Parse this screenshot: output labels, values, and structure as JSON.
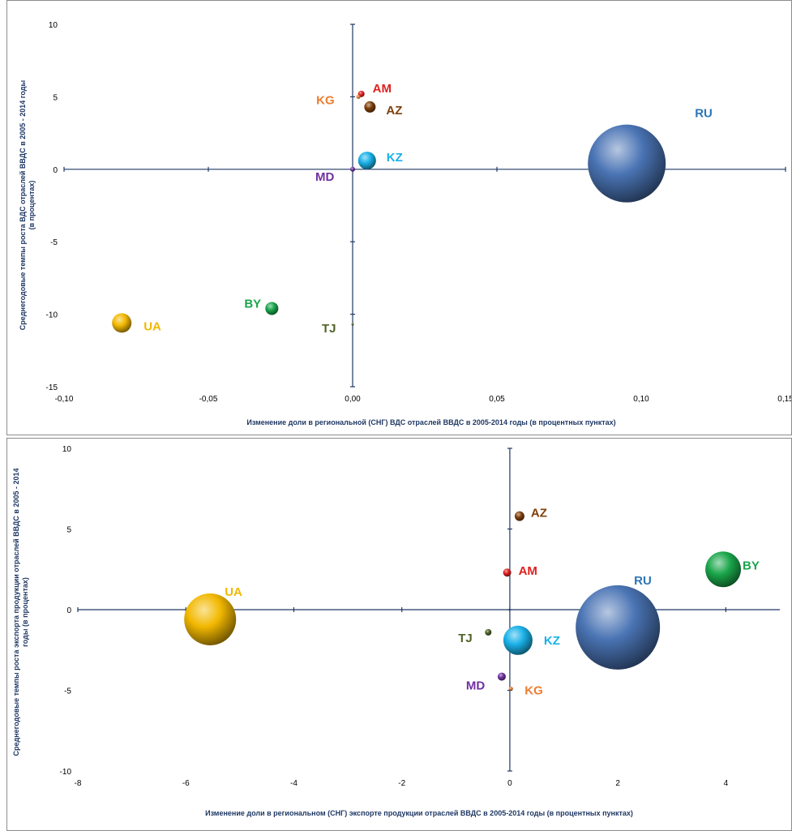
{
  "charts": [
    {
      "type": "scatter",
      "subtype": "bubble",
      "xlabel": "Изменение доли в региональной (СНГ) ВДС  отраслей ВВДС в 2005-2014 годы (в  процентных пунктах)",
      "ylabel_lines": [
        "Среднегодовые темпы роста ВДС  отраслей ВВДС в 2005 - 2014 годы",
        "(в процентах)"
      ],
      "xlim": [
        -0.1,
        0.15
      ],
      "ylim": [
        -15,
        10
      ],
      "xticks": [
        -0.1,
        -0.05,
        0.0,
        0.05,
        0.1,
        0.15
      ],
      "xtick_labels": [
        "-0,10",
        "-0,05",
        "0,00",
        "0,05",
        "0,10",
        "0,15"
      ],
      "yticks": [
        -15,
        -10,
        -5,
        0,
        5,
        10
      ],
      "ytick_labels": [
        "-15",
        "-10",
        "-5",
        "0",
        "5",
        "10"
      ],
      "grid": false,
      "points": [
        {
          "label": "RU",
          "x": 0.095,
          "y": 0.4,
          "size": 48,
          "color": "#4a74b4",
          "label_color": "#2e75b6"
        },
        {
          "label": "UA",
          "x": -0.08,
          "y": -10.6,
          "size": 12,
          "color": "#f2b800",
          "label_color": "#f2b800"
        },
        {
          "label": "BY",
          "x": -0.028,
          "y": -9.6,
          "size": 8,
          "color": "#1aa64a",
          "label_color": "#1aa64a"
        },
        {
          "label": "KZ",
          "x": 0.005,
          "y": 0.6,
          "size": 11,
          "color": "#1ab1e8",
          "label_color": "#1ab1e8"
        },
        {
          "label": "AM",
          "x": 0.003,
          "y": 5.2,
          "size": 4,
          "color": "#e02020",
          "label_color": "#e02020"
        },
        {
          "label": "KG",
          "x": 0.002,
          "y": 5.0,
          "size": 2.5,
          "color": "#ed7d31",
          "label_color": "#ed7d31"
        },
        {
          "label": "AZ",
          "x": 0.006,
          "y": 4.3,
          "size": 7,
          "color": "#7f3f0a",
          "label_color": "#7f3f0a"
        },
        {
          "label": "MD",
          "x": 0.0,
          "y": 0.0,
          "size": 3,
          "color": "#7030a0",
          "label_color": "#7030a0"
        },
        {
          "label": "TJ",
          "x": 0.0,
          "y": -10.7,
          "size": 1.5,
          "color": "#4f6228",
          "label_color": "#4f6228"
        }
      ]
    },
    {
      "type": "scatter",
      "subtype": "bubble",
      "xlabel": "Изменение доли в региональном (СНГ) экспорте продукции отраслей ВВДС в 2005-2014 годы (в  процентных пунктах)",
      "ylabel_lines": [
        "Среднегодовые темпы роста экспорта продукции  отраслей ВВДС в 2005 - 2014",
        "годы (в процентах)"
      ],
      "xlim": [
        -8,
        5
      ],
      "ylim": [
        -10,
        10
      ],
      "xticks": [
        -8,
        -6,
        -4,
        -2,
        0,
        2,
        4
      ],
      "xtick_labels": [
        "-8",
        "-6",
        "-4",
        "-2",
        "0",
        "2",
        "4"
      ],
      "yticks": [
        -10,
        -5,
        0,
        5,
        10
      ],
      "ytick_labels": [
        "-10",
        "-5",
        "0",
        "5",
        "10"
      ],
      "grid": false,
      "points": [
        {
          "label": "RU",
          "x": 2.0,
          "y": -1.1,
          "size": 52,
          "color": "#4a74b4",
          "label_color": "#2e75b6"
        },
        {
          "label": "UA",
          "x": -5.55,
          "y": -0.6,
          "size": 32,
          "color": "#f2b800",
          "label_color": "#f2b800"
        },
        {
          "label": "BY",
          "x": 3.95,
          "y": 2.5,
          "size": 22,
          "color": "#1aa64a",
          "label_color": "#1aa64a"
        },
        {
          "label": "KZ",
          "x": 0.15,
          "y": -1.9,
          "size": 18,
          "color": "#1ab1e8",
          "label_color": "#1ab1e8"
        },
        {
          "label": "AM",
          "x": -0.05,
          "y": 2.3,
          "size": 5,
          "color": "#e02020",
          "label_color": "#e02020"
        },
        {
          "label": "AZ",
          "x": 0.18,
          "y": 5.8,
          "size": 6,
          "color": "#7f3f0a",
          "label_color": "#7f3f0a"
        },
        {
          "label": "TJ",
          "x": -0.4,
          "y": -1.4,
          "size": 4,
          "color": "#4f6228",
          "label_color": "#4f6228"
        },
        {
          "label": "MD",
          "x": -0.15,
          "y": -4.15,
          "size": 5,
          "color": "#7030a0",
          "label_color": "#7030a0"
        },
        {
          "label": "KG",
          "x": 0.02,
          "y": -4.9,
          "size": 2.5,
          "color": "#ed7d31",
          "label_color": "#ed7d31"
        }
      ]
    }
  ]
}
